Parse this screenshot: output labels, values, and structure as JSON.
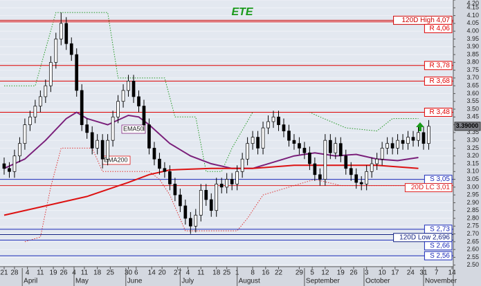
{
  "chart_data": {
    "type": "candlestick",
    "title": "ETE",
    "x": [
      0,
      2,
      4,
      6,
      8,
      10,
      12,
      14,
      16,
      18,
      20,
      22,
      24,
      26,
      28,
      30,
      32,
      34,
      36,
      38,
      40,
      42,
      44,
      46,
      48,
      50,
      52,
      54,
      56,
      58,
      60,
      62,
      64,
      66,
      68,
      70,
      72,
      74,
      76,
      78,
      80,
      82,
      84,
      86,
      88,
      90,
      92,
      94,
      96,
      98,
      100,
      102,
      104,
      106,
      108,
      110,
      112,
      114,
      116,
      118,
      120,
      122,
      124,
      126,
      128,
      130,
      132,
      134,
      136,
      138,
      140,
      142,
      144,
      146,
      148,
      150,
      152,
      154,
      156,
      158,
      160,
      162,
      164
    ],
    "open": [
      3.15,
      3.12,
      3.1,
      3.2,
      3.28,
      3.4,
      3.45,
      3.52,
      3.58,
      3.65,
      3.8,
      3.95,
      4.05,
      3.92,
      3.85,
      3.62,
      3.4,
      3.35,
      3.25,
      3.3,
      3.18,
      3.3,
      3.45,
      3.55,
      3.62,
      3.68,
      3.58,
      3.52,
      3.4,
      3.25,
      3.18,
      3.12,
      3.1,
      3.02,
      2.95,
      2.88,
      2.8,
      2.75,
      2.82,
      2.98,
      2.92,
      2.85,
      3.02,
      3.0,
      3.05,
      3.02,
      3.1,
      3.18,
      3.28,
      3.32,
      3.25,
      3.38,
      3.42,
      3.45,
      3.4,
      3.36,
      3.3,
      3.28,
      3.25,
      3.22,
      3.15,
      3.08,
      3.05,
      3.3,
      3.22,
      3.28,
      3.2,
      3.12,
      3.08,
      3.03,
      3.02,
      3.1,
      3.15,
      3.18,
      3.25,
      3.28,
      3.25,
      3.3,
      3.28,
      3.32,
      3.3,
      3.35,
      3.28
    ],
    "high": [
      3.19,
      3.16,
      3.24,
      3.32,
      3.44,
      3.49,
      3.56,
      3.62,
      3.69,
      3.84,
      3.99,
      4.12,
      4.09,
      3.96,
      3.89,
      3.66,
      3.44,
      3.39,
      3.34,
      3.34,
      3.34,
      3.49,
      3.59,
      3.66,
      3.72,
      3.72,
      3.62,
      3.56,
      3.44,
      3.29,
      3.22,
      3.16,
      3.14,
      3.06,
      2.99,
      2.92,
      2.84,
      2.86,
      3.02,
      3.02,
      2.96,
      3.06,
      3.06,
      3.09,
      3.09,
      3.14,
      3.22,
      3.32,
      3.36,
      3.36,
      3.42,
      3.46,
      3.49,
      3.49,
      3.44,
      3.4,
      3.34,
      3.32,
      3.29,
      3.26,
      3.19,
      3.12,
      3.34,
      3.34,
      3.32,
      3.32,
      3.24,
      3.16,
      3.12,
      3.07,
      3.14,
      3.19,
      3.22,
      3.29,
      3.32,
      3.32,
      3.34,
      3.34,
      3.36,
      3.36,
      3.39,
      3.39,
      3.43
    ],
    "low": [
      3.08,
      3.06,
      3.06,
      3.16,
      3.24,
      3.36,
      3.41,
      3.48,
      3.54,
      3.61,
      3.76,
      3.91,
      3.88,
      3.81,
      3.58,
      3.36,
      3.31,
      3.21,
      3.21,
      3.12,
      3.14,
      3.26,
      3.41,
      3.51,
      3.58,
      3.54,
      3.48,
      3.36,
      3.21,
      3.14,
      3.08,
      3.06,
      2.98,
      2.91,
      2.84,
      2.76,
      2.7,
      2.71,
      2.78,
      2.88,
      2.81,
      2.81,
      2.96,
      2.96,
      2.98,
      2.98,
      3.06,
      3.14,
      3.24,
      3.21,
      3.21,
      3.34,
      3.38,
      3.36,
      3.32,
      3.26,
      3.24,
      3.21,
      3.18,
      3.11,
      3.04,
      3.01,
      3.01,
      3.18,
      3.18,
      3.16,
      3.08,
      3.04,
      2.99,
      2.98,
      2.98,
      3.06,
      3.11,
      3.14,
      3.21,
      3.21,
      3.21,
      3.24,
      3.24,
      3.26,
      3.26,
      3.24,
      3.24
    ],
    "close": [
      3.12,
      3.1,
      3.2,
      3.28,
      3.4,
      3.45,
      3.52,
      3.58,
      3.65,
      3.8,
      3.95,
      4.05,
      3.92,
      3.85,
      3.62,
      3.4,
      3.35,
      3.25,
      3.3,
      3.18,
      3.3,
      3.45,
      3.55,
      3.62,
      3.68,
      3.58,
      3.52,
      3.4,
      3.25,
      3.18,
      3.12,
      3.1,
      3.02,
      2.95,
      2.88,
      2.8,
      2.75,
      2.82,
      2.98,
      2.92,
      2.85,
      3.02,
      3.0,
      3.05,
      3.02,
      3.1,
      3.18,
      3.28,
      3.32,
      3.25,
      3.38,
      3.42,
      3.45,
      3.4,
      3.36,
      3.3,
      3.28,
      3.25,
      3.22,
      3.15,
      3.08,
      3.05,
      3.3,
      3.22,
      3.28,
      3.2,
      3.12,
      3.08,
      3.03,
      3.02,
      3.1,
      3.15,
      3.18,
      3.25,
      3.28,
      3.25,
      3.3,
      3.28,
      3.32,
      3.3,
      3.35,
      3.28,
      3.39
    ],
    "up_color": "#ffffff",
    "down_color": "#000000",
    "lines": [
      {
        "name": "EMA50",
        "color": "#7a1f7a",
        "x": [
          0,
          8,
          16,
          24,
          28,
          32,
          40,
          48,
          52,
          56,
          64,
          72,
          80,
          88,
          96,
          104,
          112,
          120,
          128,
          136,
          144,
          152,
          160
        ],
        "values": [
          3.12,
          3.18,
          3.3,
          3.44,
          3.48,
          3.44,
          3.4,
          3.46,
          3.45,
          3.4,
          3.28,
          3.2,
          3.15,
          3.12,
          3.12,
          3.16,
          3.2,
          3.22,
          3.2,
          3.21,
          3.18,
          3.17,
          3.19
        ]
      },
      {
        "name": "EMA200",
        "color": "#dd1111",
        "x": [
          0,
          16,
          32,
          48,
          56,
          64,
          80,
          96,
          112,
          128,
          144,
          160
        ],
        "values": [
          2.82,
          2.88,
          2.94,
          3.03,
          3.08,
          3.11,
          3.12,
          3.12,
          3.14,
          3.14,
          3.14,
          3.12
        ]
      }
    ],
    "envelopes": [
      {
        "color": "#229922",
        "x": [
          0,
          12,
          20,
          40,
          44,
          62,
          66,
          74,
          78,
          84,
          88,
          96,
          118,
          122,
          132,
          144,
          150,
          160
        ],
        "values": [
          3.65,
          3.65,
          4.12,
          4.12,
          3.7,
          3.7,
          3.45,
          3.45,
          3.1,
          3.1,
          3.25,
          3.48,
          3.48,
          3.45,
          3.38,
          3.36,
          3.44,
          3.44
        ]
      },
      {
        "color": "#e03030",
        "x": [
          8,
          14,
          18,
          22,
          34,
          38,
          56,
          60,
          64,
          70,
          90,
          94,
          100,
          110,
          120,
          130,
          150,
          160
        ],
        "values": [
          2.65,
          2.68,
          3.0,
          3.25,
          3.25,
          3.1,
          3.1,
          3.05,
          2.95,
          2.72,
          2.72,
          2.8,
          2.95,
          3.0,
          3.05,
          3.01,
          3.01,
          3.01
        ]
      }
    ],
    "levels": [
      {
        "label": "120D High 4,07",
        "value": 4.07,
        "color": "#cc0000"
      },
      {
        "label": "R 4,06",
        "value": 4.06,
        "color": "#e00000"
      },
      {
        "label": "R 3,78",
        "value": 3.78,
        "color": "#e00000"
      },
      {
        "label": "R 3,68",
        "value": 3.68,
        "color": "#e00000"
      },
      {
        "label": "R 3,48",
        "value": 3.48,
        "color": "#e00000"
      },
      {
        "label": "S 3,05",
        "value": 3.05,
        "color": "#1a2ab8"
      },
      {
        "label": "20D LC 3,01",
        "value": 3.01,
        "color": "#e02020"
      },
      {
        "label": "S 2,73",
        "value": 2.73,
        "color": "#1a2ab8"
      },
      {
        "label": "120D Low 2,696",
        "value": 2.696,
        "color": "#102080"
      },
      {
        "label": "S 2,66",
        "value": 2.66,
        "color": "#1a2ab8"
      },
      {
        "label": "S 2,56",
        "value": 2.56,
        "color": "#1a2ab8"
      }
    ],
    "last": {
      "value": 3.39,
      "label": "3.39000"
    },
    "xlim": [
      -1.6,
      173.5
    ],
    "xticks": [
      {
        "value": 0,
        "label": "21"
      },
      {
        "value": 4,
        "label": "28"
      },
      {
        "value": 9,
        "label": "4"
      },
      {
        "value": 14,
        "label": "11"
      },
      {
        "value": 19,
        "label": "19"
      },
      {
        "value": 23,
        "label": "26"
      },
      {
        "value": 27,
        "label": "4"
      },
      {
        "value": 31,
        "label": "11"
      },
      {
        "value": 36,
        "label": "18"
      },
      {
        "value": 41,
        "label": "25"
      },
      {
        "value": 48,
        "label": "30"
      },
      {
        "value": 51,
        "label": "6"
      },
      {
        "value": 57,
        "label": "14"
      },
      {
        "value": 61,
        "label": "20"
      },
      {
        "value": 67,
        "label": "27"
      },
      {
        "value": 71,
        "label": "4"
      },
      {
        "value": 76,
        "label": "11"
      },
      {
        "value": 82,
        "label": "18"
      },
      {
        "value": 86,
        "label": "25"
      },
      {
        "value": 90,
        "label": "1"
      },
      {
        "value": 96,
        "label": "8"
      },
      {
        "value": 101,
        "label": "16"
      },
      {
        "value": 106,
        "label": "22"
      },
      {
        "value": 114,
        "label": "29"
      },
      {
        "value": 119,
        "label": "5"
      },
      {
        "value": 124,
        "label": "12"
      },
      {
        "value": 130,
        "label": "19"
      },
      {
        "value": 135,
        "label": "26"
      },
      {
        "value": 140,
        "label": "3"
      },
      {
        "value": 146,
        "label": "10"
      },
      {
        "value": 151,
        "label": "17"
      },
      {
        "value": 157,
        "label": "24"
      },
      {
        "value": 162,
        "label": "31"
      },
      {
        "value": 167,
        "label": "7"
      },
      {
        "value": 173,
        "label": "14"
      }
    ],
    "months": [
      {
        "value": 7,
        "label": "April"
      },
      {
        "value": 27,
        "label": "May"
      },
      {
        "value": 47,
        "label": "June"
      },
      {
        "value": 68,
        "label": "July"
      },
      {
        "value": 90,
        "label": "August"
      },
      {
        "value": 116,
        "label": "September"
      },
      {
        "value": 139,
        "label": "October"
      },
      {
        "value": 162,
        "label": "November"
      }
    ],
    "ylim": [
      2.49,
      4.2
    ],
    "yticks": [
      {
        "value": 2.5,
        "label": "2.50"
      },
      {
        "value": 2.55,
        "label": "2.55"
      },
      {
        "value": 2.6,
        "label": "2.60"
      },
      {
        "value": 2.65,
        "label": "2.65"
      },
      {
        "value": 2.7,
        "label": "2.70"
      },
      {
        "value": 2.75,
        "label": "2.75"
      },
      {
        "value": 2.8,
        "label": "2.80"
      },
      {
        "value": 2.85,
        "label": "2.85"
      },
      {
        "value": 2.9,
        "label": "2.90"
      },
      {
        "value": 2.95,
        "label": "2.95"
      },
      {
        "value": 3.0,
        "label": "3.00"
      },
      {
        "value": 3.05,
        "label": "3.05"
      },
      {
        "value": 3.1,
        "label": "3.10"
      },
      {
        "value": 3.15,
        "label": "3.15"
      },
      {
        "value": 3.2,
        "label": "3.20"
      },
      {
        "value": 3.25,
        "label": "3.25"
      },
      {
        "value": 3.3,
        "label": "3.30"
      },
      {
        "value": 3.35,
        "label": "3.35"
      },
      {
        "value": 3.4,
        "label": "3.40"
      },
      {
        "value": 3.45,
        "label": "3.45"
      },
      {
        "value": 3.5,
        "label": "3.50"
      },
      {
        "value": 3.55,
        "label": "3.55"
      },
      {
        "value": 3.6,
        "label": "3.60"
      },
      {
        "value": 3.65,
        "label": "3.65"
      },
      {
        "value": 3.7,
        "label": "3.70"
      },
      {
        "value": 3.75,
        "label": "3.75"
      },
      {
        "value": 3.8,
        "label": "3.80"
      },
      {
        "value": 3.85,
        "label": "3.85"
      },
      {
        "value": 3.9,
        "label": "3.90"
      },
      {
        "value": 3.95,
        "label": "3.95"
      },
      {
        "value": 4.0,
        "label": "4.00"
      },
      {
        "value": 4.05,
        "label": "4.05"
      },
      {
        "value": 4.1,
        "label": "4.10"
      },
      {
        "value": 4.15,
        "label": "4.15"
      },
      {
        "value": 4.2,
        "label": "4.20"
      }
    ],
    "grid": true
  }
}
